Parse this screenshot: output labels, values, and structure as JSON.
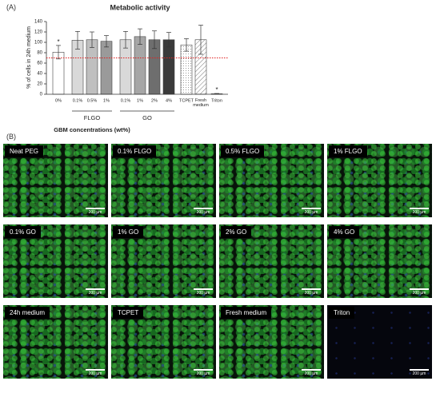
{
  "panel_labels": [
    "(A)",
    "(B)"
  ],
  "chart_data": {
    "type": "bar",
    "title": "Metabolic activity",
    "ylabel": "% of cells in 24h medium",
    "xlabel": "GBM concentrations (wt%)",
    "categories": [
      "0%",
      "0.1%",
      "0.5%",
      "1%",
      "0.1%",
      "1%",
      "2%",
      "4%",
      "TCPET",
      "Fresh medium",
      "Triton"
    ],
    "values": [
      81,
      104,
      105,
      102,
      105,
      111,
      105,
      105,
      95,
      105,
      1
    ],
    "errors": [
      13,
      17,
      15,
      11,
      16,
      15,
      17,
      14,
      12,
      28,
      0.5
    ],
    "colors": [
      "#ffffff",
      "#d9d9d9",
      "#bfbfbf",
      "#9a9a9a",
      "#d9d9d9",
      "#a6a6a6",
      "#6e6e6e",
      "#3a3a3a",
      "#ffffff",
      "#ffffff",
      "#ffffff"
    ],
    "patterns": [
      null,
      null,
      null,
      null,
      null,
      null,
      null,
      null,
      "dots",
      "hatch",
      null
    ],
    "markers": [
      "*",
      null,
      null,
      null,
      null,
      null,
      null,
      null,
      null,
      null,
      "*"
    ],
    "group_labels": [
      "FLGO",
      "GO"
    ],
    "reference_line": 70,
    "reference_color": "#e02020",
    "ylim": [
      0,
      140
    ],
    "yticks": [
      0,
      20,
      40,
      60,
      80,
      100,
      120,
      140
    ]
  },
  "images": [
    {
      "label": "Neat PEG",
      "scale": "200 µm"
    },
    {
      "label": "0.1% FLGO",
      "scale": "200 µm"
    },
    {
      "label": "0.5% FLGO",
      "scale": "200 µm"
    },
    {
      "label": "1% FLGO",
      "scale": "200 µm"
    },
    {
      "label": "0.1% GO",
      "scale": "200 µm"
    },
    {
      "label": "1% GO",
      "scale": "200 µm"
    },
    {
      "label": "2% GO",
      "scale": "200 µm"
    },
    {
      "label": "4% GO",
      "scale": "200 µm"
    },
    {
      "label": "24h medium",
      "scale": "200 µm"
    },
    {
      "label": "TCPET",
      "scale": "200 µm"
    },
    {
      "label": "Fresh medium",
      "scale": "200 µm"
    },
    {
      "label": "Triton",
      "scale": "200 µm"
    }
  ]
}
